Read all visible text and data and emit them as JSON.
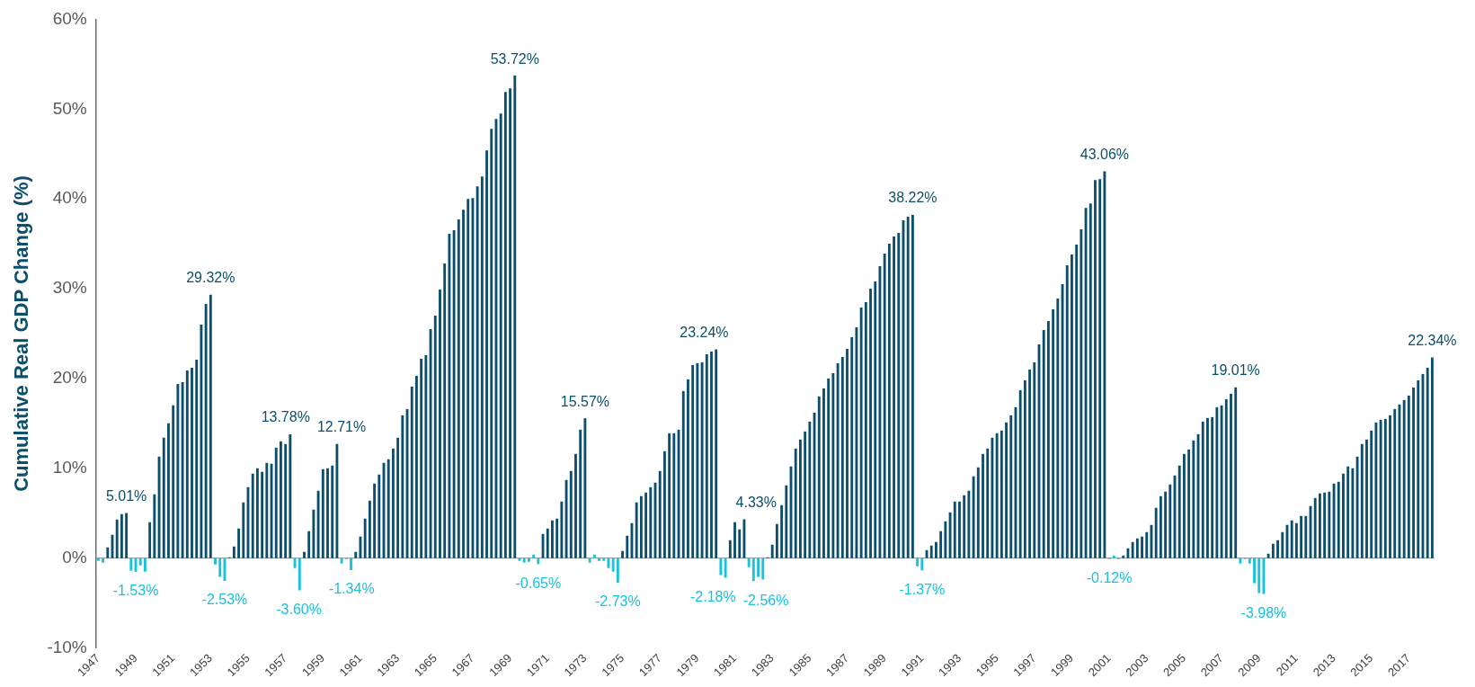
{
  "chart_data": {
    "type": "bar",
    "ylabel": "Cumulative Real GDP Change (%)",
    "categories": [
      "1947",
      null,
      null,
      null,
      null,
      null,
      null,
      null,
      "1949",
      null,
      null,
      null,
      null,
      null,
      null,
      null,
      "1951",
      null,
      null,
      null,
      null,
      null,
      null,
      null,
      "1953",
      null,
      null,
      null,
      null,
      null,
      null,
      null,
      "1955",
      null,
      null,
      null,
      null,
      null,
      null,
      null,
      "1957",
      null,
      null,
      null,
      null,
      null,
      null,
      null,
      "1959",
      null,
      null,
      null,
      null,
      null,
      null,
      null,
      "1961",
      null,
      null,
      null,
      null,
      null,
      null,
      null,
      "1963",
      null,
      null,
      null,
      null,
      null,
      null,
      null,
      "1965",
      null,
      null,
      null,
      null,
      null,
      null,
      null,
      "1967",
      null,
      null,
      null,
      null,
      null,
      null,
      null,
      "1969",
      null,
      null,
      null,
      null,
      null,
      null,
      null,
      "1971",
      null,
      null,
      null,
      null,
      null,
      null,
      null,
      "1973",
      null,
      null,
      null,
      null,
      null,
      null,
      null,
      "1975",
      null,
      null,
      null,
      null,
      null,
      null,
      null,
      "1977",
      null,
      null,
      null,
      null,
      null,
      null,
      null,
      "1979",
      null,
      null,
      null,
      null,
      null,
      null,
      null,
      "1981",
      null,
      null,
      null,
      null,
      null,
      null,
      null,
      "1983",
      null,
      null,
      null,
      null,
      null,
      null,
      null,
      "1985",
      null,
      null,
      null,
      null,
      null,
      null,
      null,
      "1987",
      null,
      null,
      null,
      null,
      null,
      null,
      null,
      "1989",
      null,
      null,
      null,
      null,
      null,
      null,
      null,
      "1991",
      null,
      null,
      null,
      null,
      null,
      null,
      null,
      "1993",
      null,
      null,
      null,
      null,
      null,
      null,
      null,
      "1995",
      null,
      null,
      null,
      null,
      null,
      null,
      null,
      "1997",
      null,
      null,
      null,
      null,
      null,
      null,
      null,
      "1999",
      null,
      null,
      null,
      null,
      null,
      null,
      null,
      "2001",
      null,
      null,
      null,
      null,
      null,
      null,
      null,
      "2003",
      null,
      null,
      null,
      null,
      null,
      null,
      null,
      "2005",
      null,
      null,
      null,
      null,
      null,
      null,
      null,
      "2007",
      null,
      null,
      null,
      null,
      null,
      null,
      null,
      "2009",
      null,
      null,
      null,
      null,
      null,
      null,
      null,
      "2011",
      null,
      null,
      null,
      null,
      null,
      null,
      null,
      "2013",
      null,
      null,
      null,
      null,
      null,
      null,
      null,
      "2015",
      null,
      null,
      null,
      null,
      null,
      null,
      null,
      "2017",
      null,
      null,
      null,
      null,
      null
    ],
    "values": [
      -0.3,
      -0.5,
      1.2,
      2.6,
      4.3,
      4.9,
      5.01,
      -1.4,
      -1.53,
      -0.8,
      -1.5,
      4.0,
      7.1,
      11.3,
      13.4,
      15.0,
      17.0,
      19.4,
      19.6,
      20.9,
      21.2,
      22.1,
      26.0,
      28.3,
      29.32,
      -0.7,
      -2.1,
      -2.53,
      0.1,
      1.3,
      3.3,
      6.2,
      7.9,
      9.4,
      10.0,
      9.6,
      10.6,
      10.5,
      12.3,
      13.0,
      12.7,
      13.78,
      -1.1,
      -3.6,
      0.7,
      3.0,
      5.4,
      7.5,
      9.9,
      10.0,
      10.3,
      12.71,
      -0.6,
      -0.1,
      -1.34,
      0.7,
      2.4,
      4.4,
      6.4,
      8.3,
      9.3,
      10.6,
      11.0,
      12.2,
      13.4,
      15.9,
      16.6,
      19.1,
      20.3,
      22.2,
      22.6,
      25.5,
      27.0,
      29.9,
      32.8,
      36.1,
      36.5,
      37.7,
      38.8,
      40.0,
      40.1,
      41.4,
      42.5,
      45.4,
      47.8,
      48.9,
      49.5,
      51.9,
      52.3,
      53.72,
      -0.3,
      -0.5,
      -0.4,
      0.4,
      -0.65,
      2.7,
      3.3,
      4.2,
      4.4,
      6.3,
      8.7,
      9.7,
      11.6,
      14.3,
      15.57,
      -0.5,
      0.4,
      -0.3,
      -0.3,
      -1.1,
      -1.5,
      -2.73,
      0.8,
      2.5,
      3.9,
      6.2,
      6.9,
      7.3,
      7.9,
      8.4,
      9.7,
      11.9,
      13.9,
      13.9,
      14.3,
      18.6,
      19.9,
      21.5,
      21.7,
      21.8,
      22.7,
      23.0,
      23.24,
      -1.9,
      -2.18,
      2.0,
      4.0,
      3.2,
      4.33,
      -1.0,
      -2.56,
      -2.1,
      -2.4,
      0.1,
      1.5,
      3.8,
      5.9,
      8.1,
      10.2,
      12.2,
      13.2,
      14.1,
      15.2,
      16.2,
      18.0,
      18.9,
      20.0,
      20.6,
      21.7,
      22.4,
      23.3,
      24.6,
      25.7,
      27.9,
      28.5,
      30.0,
      30.8,
      32.5,
      33.9,
      35.0,
      35.8,
      36.2,
      37.6,
      38.0,
      38.22,
      -0.9,
      -1.37,
      0.9,
      1.4,
      1.8,
      3.0,
      4.1,
      5.1,
      6.3,
      6.3,
      7.0,
      7.5,
      9.1,
      10.1,
      11.6,
      12.2,
      13.4,
      13.9,
      14.2,
      15.1,
      15.9,
      16.8,
      18.7,
      19.8,
      21.0,
      21.8,
      23.8,
      25.4,
      26.4,
      27.7,
      28.9,
      30.5,
      32.6,
      33.8,
      34.9,
      36.6,
      39.0,
      39.5,
      42.1,
      42.2,
      43.06,
      -0.12,
      0.3,
      -0.1,
      0.3,
      1.1,
      1.8,
      2.2,
      2.4,
      2.9,
      3.7,
      5.6,
      6.9,
      7.4,
      8.2,
      9.2,
      10.3,
      11.6,
      12.1,
      13.1,
      13.8,
      15.2,
      15.6,
      15.7,
      16.8,
      17.0,
      17.7,
      18.3,
      19.01,
      -0.6,
      -0.1,
      -0.6,
      -2.8,
      -3.9,
      -3.98,
      0.5,
      1.6,
      2.0,
      2.9,
      3.7,
      4.2,
      3.9,
      4.7,
      4.7,
      5.8,
      6.7,
      7.2,
      7.3,
      7.4,
      8.3,
      8.5,
      9.4,
      10.2,
      10.0,
      11.3,
      12.7,
      13.2,
      14.2,
      15.1,
      15.4,
      15.5,
      15.9,
      16.6,
      17.1,
      17.6,
      18.1,
      19.0,
      19.8,
      20.5,
      21.2,
      22.34
    ],
    "colors": [
      "#17c2de",
      "#17c2de",
      "#0b4f6c",
      "#0b4f6c",
      "#0b4f6c",
      "#0b4f6c",
      "#0b4f6c",
      "#17c2de",
      "#17c2de",
      "#17c2de",
      "#17c2de",
      "#0b4f6c",
      "#0b4f6c",
      "#0b4f6c",
      "#0b4f6c",
      "#0b4f6c",
      "#0b4f6c",
      "#0b4f6c",
      "#0b4f6c",
      "#0b4f6c",
      "#0b4f6c",
      "#0b4f6c",
      "#0b4f6c",
      "#0b4f6c",
      "#0b4f6c",
      "#17c2de",
      "#17c2de",
      "#17c2de",
      "#0b4f6c",
      "#0b4f6c",
      "#0b4f6c",
      "#0b4f6c",
      "#0b4f6c",
      "#0b4f6c",
      "#0b4f6c",
      "#0b4f6c",
      "#0b4f6c",
      "#0b4f6c",
      "#0b4f6c",
      "#0b4f6c",
      "#0b4f6c",
      "#0b4f6c",
      "#17c2de",
      "#17c2de",
      "#0b4f6c",
      "#0b4f6c",
      "#0b4f6c",
      "#0b4f6c",
      "#0b4f6c",
      "#0b4f6c",
      "#0b4f6c",
      "#0b4f6c",
      "#17c2de",
      "#17c2de",
      "#17c2de",
      "#0b4f6c",
      "#0b4f6c",
      "#0b4f6c",
      "#0b4f6c",
      "#0b4f6c",
      "#0b4f6c",
      "#0b4f6c",
      "#0b4f6c",
      "#0b4f6c",
      "#0b4f6c",
      "#0b4f6c",
      "#0b4f6c",
      "#0b4f6c",
      "#0b4f6c",
      "#0b4f6c",
      "#0b4f6c",
      "#0b4f6c",
      "#0b4f6c",
      "#0b4f6c",
      "#0b4f6c",
      "#0b4f6c",
      "#0b4f6c",
      "#0b4f6c",
      "#0b4f6c",
      "#0b4f6c",
      "#0b4f6c",
      "#0b4f6c",
      "#0b4f6c",
      "#0b4f6c",
      "#0b4f6c",
      "#0b4f6c",
      "#0b4f6c",
      "#0b4f6c",
      "#0b4f6c",
      "#0b4f6c",
      "#17c2de",
      "#17c2de",
      "#17c2de",
      "#17c2de",
      "#17c2de",
      "#0b4f6c",
      "#0b4f6c",
      "#0b4f6c",
      "#0b4f6c",
      "#0b4f6c",
      "#0b4f6c",
      "#0b4f6c",
      "#0b4f6c",
      "#0b4f6c",
      "#0b4f6c",
      "#17c2de",
      "#17c2de",
      "#17c2de",
      "#17c2de",
      "#17c2de",
      "#17c2de",
      "#17c2de",
      "#0b4f6c",
      "#0b4f6c",
      "#0b4f6c",
      "#0b4f6c",
      "#0b4f6c",
      "#0b4f6c",
      "#0b4f6c",
      "#0b4f6c",
      "#0b4f6c",
      "#0b4f6c",
      "#0b4f6c",
      "#0b4f6c",
      "#0b4f6c",
      "#0b4f6c",
      "#0b4f6c",
      "#0b4f6c",
      "#0b4f6c",
      "#0b4f6c",
      "#0b4f6c",
      "#0b4f6c",
      "#0b4f6c",
      "#17c2de",
      "#17c2de",
      "#0b4f6c",
      "#0b4f6c",
      "#0b4f6c",
      "#0b4f6c",
      "#17c2de",
      "#17c2de",
      "#17c2de",
      "#17c2de",
      "#0b4f6c",
      "#0b4f6c",
      "#0b4f6c",
      "#0b4f6c",
      "#0b4f6c",
      "#0b4f6c",
      "#0b4f6c",
      "#0b4f6c",
      "#0b4f6c",
      "#0b4f6c",
      "#0b4f6c",
      "#0b4f6c",
      "#0b4f6c",
      "#0b4f6c",
      "#0b4f6c",
      "#0b4f6c",
      "#0b4f6c",
      "#0b4f6c",
      "#0b4f6c",
      "#0b4f6c",
      "#0b4f6c",
      "#0b4f6c",
      "#0b4f6c",
      "#0b4f6c",
      "#0b4f6c",
      "#0b4f6c",
      "#0b4f6c",
      "#0b4f6c",
      "#0b4f6c",
      "#0b4f6c",
      "#0b4f6c",
      "#0b4f6c",
      "#17c2de",
      "#17c2de",
      "#0b4f6c",
      "#0b4f6c",
      "#0b4f6c",
      "#0b4f6c",
      "#0b4f6c",
      "#0b4f6c",
      "#0b4f6c",
      "#0b4f6c",
      "#0b4f6c",
      "#0b4f6c",
      "#0b4f6c",
      "#0b4f6c",
      "#0b4f6c",
      "#0b4f6c",
      "#0b4f6c",
      "#0b4f6c",
      "#0b4f6c",
      "#0b4f6c",
      "#0b4f6c",
      "#0b4f6c",
      "#0b4f6c",
      "#0b4f6c",
      "#0b4f6c",
      "#0b4f6c",
      "#0b4f6c",
      "#0b4f6c",
      "#0b4f6c",
      "#0b4f6c",
      "#0b4f6c",
      "#0b4f6c",
      "#0b4f6c",
      "#0b4f6c",
      "#0b4f6c",
      "#0b4f6c",
      "#0b4f6c",
      "#0b4f6c",
      "#0b4f6c",
      "#0b4f6c",
      "#0b4f6c",
      "#17c2de",
      "#17c2de",
      "#17c2de",
      "#0b4f6c",
      "#0b4f6c",
      "#0b4f6c",
      "#0b4f6c",
      "#0b4f6c",
      "#0b4f6c",
      "#0b4f6c",
      "#0b4f6c",
      "#0b4f6c",
      "#0b4f6c",
      "#0b4f6c",
      "#0b4f6c",
      "#0b4f6c",
      "#0b4f6c",
      "#0b4f6c",
      "#0b4f6c",
      "#0b4f6c",
      "#0b4f6c",
      "#0b4f6c",
      "#0b4f6c",
      "#0b4f6c",
      "#0b4f6c",
      "#0b4f6c",
      "#0b4f6c",
      "#0b4f6c",
      "#17c2de",
      "#17c2de",
      "#17c2de",
      "#17c2de",
      "#17c2de",
      "#17c2de",
      "#0b4f6c",
      "#0b4f6c",
      "#0b4f6c",
      "#0b4f6c",
      "#0b4f6c",
      "#0b4f6c",
      "#0b4f6c",
      "#0b4f6c",
      "#0b4f6c",
      "#0b4f6c",
      "#0b4f6c",
      "#0b4f6c",
      "#0b4f6c",
      "#0b4f6c",
      "#0b4f6c",
      "#0b4f6c",
      "#0b4f6c",
      "#0b4f6c",
      "#0b4f6c",
      "#0b4f6c",
      "#0b4f6c",
      "#0b4f6c",
      "#0b4f6c",
      "#0b4f6c",
      "#0b4f6c",
      "#0b4f6c",
      "#0b4f6c",
      "#0b4f6c",
      "#0b4f6c",
      "#0b4f6c",
      "#0b4f6c",
      "#0b4f6c",
      "#0b4f6c",
      "#0b4f6c",
      "#0b4f6c",
      "#0b4f6c"
    ],
    "value_labels": [
      null,
      null,
      null,
      null,
      null,
      null,
      "5.01%",
      null,
      "-1.53%",
      null,
      null,
      null,
      null,
      null,
      null,
      null,
      null,
      null,
      null,
      null,
      null,
      null,
      null,
      null,
      "29.32%",
      null,
      null,
      "-2.53%",
      null,
      null,
      null,
      null,
      null,
      null,
      null,
      null,
      null,
      null,
      null,
      null,
      null,
      "13.78%",
      null,
      "-3.60%",
      null,
      null,
      null,
      null,
      null,
      null,
      null,
      "12.71%",
      null,
      null,
      "-1.34%",
      null,
      null,
      null,
      null,
      null,
      null,
      null,
      null,
      null,
      null,
      null,
      null,
      null,
      null,
      null,
      null,
      null,
      null,
      null,
      null,
      null,
      null,
      null,
      null,
      null,
      null,
      null,
      null,
      null,
      null,
      null,
      null,
      null,
      null,
      "53.72%",
      null,
      null,
      null,
      null,
      "-0.65%",
      null,
      null,
      null,
      null,
      null,
      null,
      null,
      null,
      null,
      "15.57%",
      null,
      null,
      null,
      null,
      null,
      null,
      "-2.73%",
      null,
      null,
      null,
      null,
      null,
      null,
      null,
      null,
      null,
      null,
      null,
      null,
      null,
      null,
      null,
      null,
      null,
      null,
      null,
      null,
      "23.24%",
      null,
      "-2.18%",
      null,
      null,
      null,
      "4.33%",
      null,
      "-2.56%",
      null,
      null,
      null,
      null,
      null,
      null,
      null,
      null,
      null,
      null,
      null,
      null,
      null,
      null,
      null,
      null,
      null,
      null,
      null,
      null,
      null,
      null,
      null,
      null,
      null,
      null,
      null,
      null,
      null,
      null,
      null,
      null,
      null,
      "38.22%",
      null,
      "-1.37%",
      null,
      null,
      null,
      null,
      null,
      null,
      null,
      null,
      null,
      null,
      null,
      null,
      null,
      null,
      null,
      null,
      null,
      null,
      null,
      null,
      null,
      null,
      null,
      null,
      null,
      null,
      null,
      null,
      null,
      null,
      null,
      null,
      null,
      null,
      null,
      null,
      null,
      null,
      "43.06%",
      "-0.12%",
      null,
      null,
      null,
      null,
      null,
      null,
      null,
      null,
      null,
      null,
      null,
      null,
      null,
      null,
      null,
      null,
      null,
      null,
      null,
      null,
      null,
      null,
      null,
      null,
      null,
      null,
      "19.01%",
      null,
      null,
      null,
      null,
      null,
      "-3.98%",
      null,
      null,
      null,
      null,
      null,
      null,
      null,
      null,
      null,
      null,
      null,
      null,
      null,
      null,
      null,
      null,
      null,
      null,
      null,
      null,
      null,
      null,
      null,
      null,
      null,
      null,
      null,
      null,
      null,
      null,
      null,
      null,
      null,
      null,
      null,
      "22.34%"
    ],
    "ylim": [
      -10,
      60
    ],
    "yticks": [
      {
        "value": -10,
        "label": "-10%"
      },
      {
        "value": 0,
        "label": "0%"
      },
      {
        "value": 10,
        "label": "10%"
      },
      {
        "value": 20,
        "label": "20%"
      },
      {
        "value": 30,
        "label": "30%"
      },
      {
        "value": 40,
        "label": "40%"
      },
      {
        "value": 50,
        "label": "50%"
      },
      {
        "value": 60,
        "label": "60%"
      }
    ]
  }
}
